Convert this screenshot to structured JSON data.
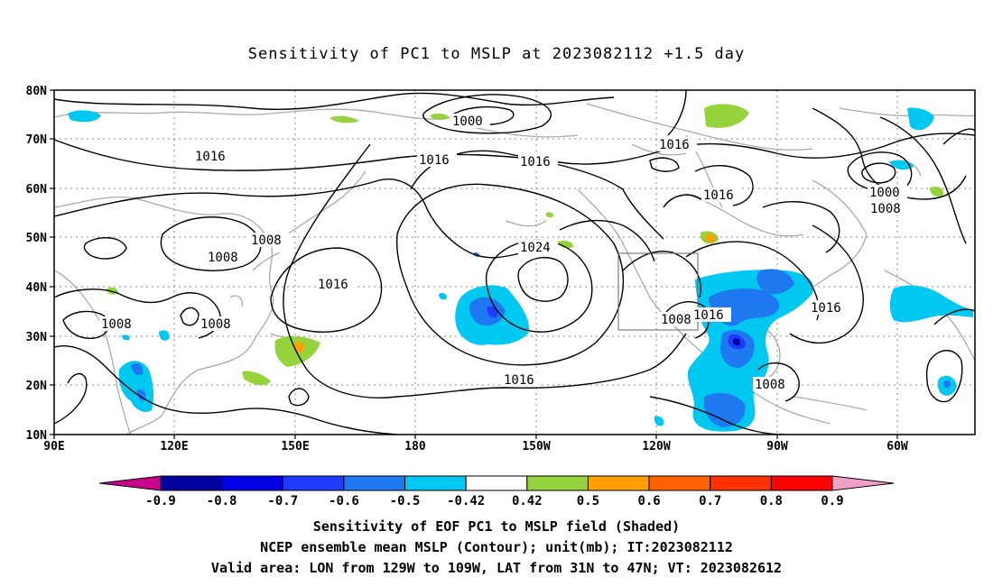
{
  "title": "Sensitivity of PC1 to MSLP at 2023082112 +1.5 day",
  "axes": {
    "lat_labels": [
      "80N",
      "70N",
      "60N",
      "50N",
      "40N",
      "30N",
      "20N",
      "10N"
    ],
    "lon_labels": [
      "90E",
      "120E",
      "150E",
      "180",
      "150W",
      "120W",
      "90W",
      "60W"
    ]
  },
  "contour_labels": {
    "c1016_a": "1016",
    "c1016_b": "1016",
    "c1016_c": "1016",
    "c1016_d": "1016",
    "c1016_e": "1016",
    "c1016_f": "1016",
    "c1016_g": "1016",
    "c1016_h": "1016",
    "c1000_a": "1000",
    "c1000_b": "1000",
    "c1008_a": "1008",
    "c1008_b": "1008",
    "c1008_c": "1008",
    "c1008_d": "1008",
    "c1008_e": "1008",
    "c1008_f": "1008",
    "c1008_g": "1008",
    "c1024": "1024"
  },
  "colorbar": {
    "labels": [
      "-0.9",
      "-0.8",
      "-0.7",
      "-0.6",
      "-0.5",
      "-0.42",
      "0.42",
      "0.5",
      "0.6",
      "0.7",
      "0.8",
      "0.9"
    ],
    "colors": [
      "#c8008c",
      "#0000a0",
      "#0000e6",
      "#1e3cff",
      "#1e78f0",
      "#00c8f0",
      "#ffffff",
      "#96d23c",
      "#ffa000",
      "#ff6400",
      "#ff3200",
      "#ff0000",
      "#f0a0c8"
    ]
  },
  "captions": {
    "line1": "Sensitivity of EOF PC1 to MSLP field (Shaded)",
    "line2": "NCEP ensemble mean MSLP (Contour); unit(mb); IT:2023082112",
    "line3": "Valid area: LON from 129W to 109W, LAT from 31N to 47N; VT: 2023082612"
  }
}
